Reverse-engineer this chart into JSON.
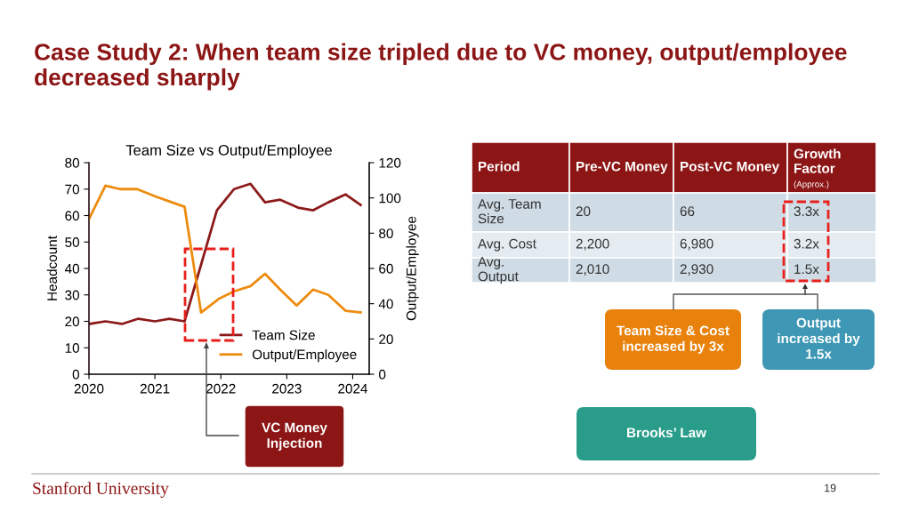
{
  "chart_data": [
    {
      "type": "line",
      "title": "Team Size vs Output/Employee",
      "ylabel": "Headcount",
      "y2label": "Output/Employee",
      "xlim": [
        2020,
        2024.25
      ],
      "xticks": [
        2020,
        2021,
        2022,
        2023,
        2024
      ],
      "ylim": [
        0,
        80
      ],
      "yticks": [
        0,
        10,
        20,
        30,
        40,
        50,
        60,
        70,
        80
      ],
      "y2lim": [
        0,
        120
      ],
      "y2ticks": [
        0,
        20,
        40,
        60,
        80,
        100,
        120
      ],
      "legend": "bottom right",
      "grid": false,
      "marker": "none",
      "line_style": "solid",
      "series": [
        {
          "name": "Team Size",
          "color": "#8c1a1a",
          "x": [
            2020,
            2020.25,
            2020.5,
            2020.75,
            2021,
            2021.22,
            2021.45,
            2021.94,
            2022.2,
            2022.45,
            2022.67,
            2022.9,
            2023.17,
            2023.4,
            2023.63,
            2023.89,
            2024.12
          ],
          "values": [
            19,
            20,
            19,
            21,
            20,
            21,
            20,
            62,
            70,
            72,
            65,
            66,
            63,
            62,
            65,
            68,
            64
          ]
        },
        {
          "name": "Output/Employee",
          "color": "#ed8b0e",
          "axis": "y2",
          "x": [
            2020,
            2020.25,
            2020.47,
            2020.73,
            2021,
            2021.22,
            2021.45,
            2021.7,
            2021.98,
            2022.2,
            2022.45,
            2022.67,
            2022.9,
            2023.15,
            2023.4,
            2023.63,
            2023.89,
            2024.12
          ],
          "values": [
            88,
            107,
            105,
            105,
            101,
            98,
            95,
            35,
            43,
            47,
            50,
            57,
            48,
            39,
            48,
            45,
            36,
            35
          ]
        }
      ],
      "annotations": [
        "VC Money Injection",
        "Case Study 2: When team size tripled due to VC money, output/employee decreased sharply",
        "Stanford University",
        "19"
      ]
    },
    {
      "type": "other",
      "annotations": [
        "Period",
        "Pre-VC Money",
        "Post-VC Money",
        "Growth Factor",
        "Avg. Team Size",
        "20",
        "66",
        "3.3x",
        "Avg. Cost",
        "2,200",
        "6,980",
        "3.2x",
        "Avg. Output",
        "2,010",
        "2,930",
        "1.5x",
        "(Approx.)",
        "Team Size & Cost increased by 3x",
        "Output increased by 1.5x",
        "Brooks’ Law"
      ]
    }
  ]
}
